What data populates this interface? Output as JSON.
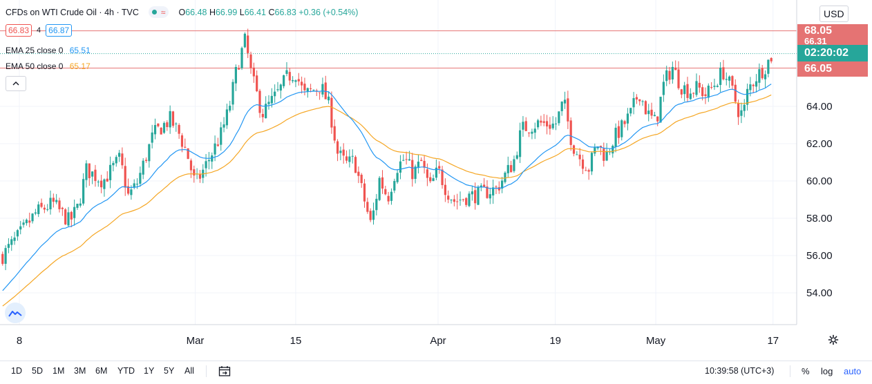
{
  "header": {
    "title": "CFDs on WTI Crude Oil · 4h · TVC",
    "wave_symbol": "≈",
    "ohlc": [
      {
        "label": "O",
        "value": "66.48"
      },
      {
        "label": "H",
        "value": "66.99"
      },
      {
        "label": "L",
        "value": "66.41"
      },
      {
        "label": "C",
        "value": "66.83"
      }
    ],
    "change": "+0.36 (+0.54%)"
  },
  "price_row": {
    "bid": "66.83",
    "spread": "4",
    "ask": "66.87"
  },
  "indicators": [
    {
      "label": "EMA 25 close 0",
      "value": "65.51",
      "color": "#2196f3"
    },
    {
      "label": "EMA 50 close 0",
      "value": "65.17",
      "color": "#f5a623"
    }
  ],
  "collapse_icon": "chevron-up-icon",
  "currency": "USD",
  "price_tags": {
    "top": {
      "label": "68.05",
      "color": "#e57373"
    },
    "hidden": {
      "label": "66.31",
      "color": "#e57373"
    },
    "countdown": {
      "label": "02:20:02",
      "color": "#26a69a"
    },
    "bottom": {
      "label": "66.05",
      "color": "#e57373"
    }
  },
  "colors": {
    "up": "#26a69a",
    "down": "#ef5350",
    "ema25": "#2196f3",
    "ema50": "#f5a623",
    "hline": "#e57373"
  },
  "chart_data": {
    "type": "candlestick",
    "title": "CFDs on WTI Crude Oil · 4h · TVC",
    "ylim": [
      52.8,
      69.0
    ],
    "y_ticks": [
      "54.00",
      "56.00",
      "58.00",
      "60.00",
      "62.00",
      "64.00"
    ],
    "x_ticks": [
      {
        "label": "8",
        "x": 0
      },
      {
        "label": "Mar",
        "x": 21
      },
      {
        "label": "15",
        "x": 33
      },
      {
        "label": "Apr",
        "x": 50
      },
      {
        "label": "19",
        "x": 64
      },
      {
        "label": "May",
        "x": 76
      },
      {
        "label": "17",
        "x": 90
      }
    ],
    "x_range": [
      -2,
      92
    ],
    "horizontal_lines": [
      68.05,
      66.05
    ],
    "current_price": 66.83,
    "candles_per_unit": 2.8,
    "close_path": [
      [
        -2,
        56.0
      ],
      [
        0,
        57.1
      ],
      [
        2,
        58.3
      ],
      [
        4,
        58.8
      ],
      [
        6,
        57.8
      ],
      [
        7,
        58.6
      ],
      [
        8,
        60.6
      ],
      [
        10,
        60.0
      ],
      [
        12,
        61.2
      ],
      [
        13,
        59.2
      ],
      [
        14,
        59.8
      ],
      [
        16,
        62.5
      ],
      [
        18,
        63.3
      ],
      [
        19,
        62.6
      ],
      [
        20,
        61.5
      ],
      [
        21,
        59.8
      ],
      [
        22,
        60.6
      ],
      [
        24,
        62.4
      ],
      [
        25,
        63.8
      ],
      [
        26,
        66.1
      ],
      [
        27,
        67.6
      ],
      [
        27.5,
        66.1
      ],
      [
        28,
        65.2
      ],
      [
        29,
        63.6
      ],
      [
        31,
        64.8
      ],
      [
        32,
        65.6
      ],
      [
        33,
        65.8
      ],
      [
        34,
        64.6
      ],
      [
        36,
        65.1
      ],
      [
        37,
        64.0
      ],
      [
        38,
        61.5
      ],
      [
        39,
        60.9
      ],
      [
        40,
        61.1
      ],
      [
        41,
        59.3
      ],
      [
        42,
        57.6
      ],
      [
        43,
        60.1
      ],
      [
        44,
        59.1
      ],
      [
        45,
        60.7
      ],
      [
        46,
        61.2
      ],
      [
        47,
        60.4
      ],
      [
        48,
        61.0
      ],
      [
        49,
        59.6
      ],
      [
        50,
        60.6
      ],
      [
        51,
        59.5
      ],
      [
        52,
        58.9
      ],
      [
        53,
        59.1
      ],
      [
        55,
        59.3
      ],
      [
        57,
        59.6
      ],
      [
        58,
        60.3
      ],
      [
        59,
        61.0
      ],
      [
        60,
        62.8
      ],
      [
        62,
        63.1
      ],
      [
        64,
        63.0
      ],
      [
        65,
        64.3
      ],
      [
        66,
        62.0
      ],
      [
        67,
        61.2
      ],
      [
        68,
        60.7
      ],
      [
        69,
        62.0
      ],
      [
        70,
        61.3
      ],
      [
        71,
        62.3
      ],
      [
        72,
        62.9
      ],
      [
        73,
        63.6
      ],
      [
        74,
        64.8
      ],
      [
        75,
        63.6
      ],
      [
        76,
        63.1
      ],
      [
        77,
        65.3
      ],
      [
        78,
        66.1
      ],
      [
        79,
        65.1
      ],
      [
        80,
        64.8
      ],
      [
        81,
        65.0
      ],
      [
        82,
        64.6
      ],
      [
        83,
        65.2
      ],
      [
        84,
        65.9
      ],
      [
        85,
        65.0
      ],
      [
        86,
        63.6
      ],
      [
        86.5,
        63.7
      ],
      [
        87,
        64.9
      ],
      [
        88,
        65.6
      ],
      [
        89,
        66.1
      ],
      [
        90,
        66.83
      ]
    ],
    "ema25": {
      "name": "EMA 25 close 0",
      "last": 65.51
    },
    "ema50": {
      "name": "EMA 50 close 0",
      "last": 65.17
    }
  },
  "bottom_bar": {
    "timeframes": [
      "1D",
      "5D",
      "1M",
      "3M",
      "6M",
      "YTD",
      "1Y",
      "5Y",
      "All"
    ],
    "calendar_icon": "calendar-range-icon",
    "clock": "10:39:58 (UTC+3)",
    "options": [
      {
        "label": "%",
        "color": "#131722"
      },
      {
        "label": "log",
        "color": "#131722"
      },
      {
        "label": "auto",
        "color": "#2962ff"
      }
    ]
  },
  "settings_icon": "gear-icon",
  "logo_icon": "tradingview-logo-icon"
}
